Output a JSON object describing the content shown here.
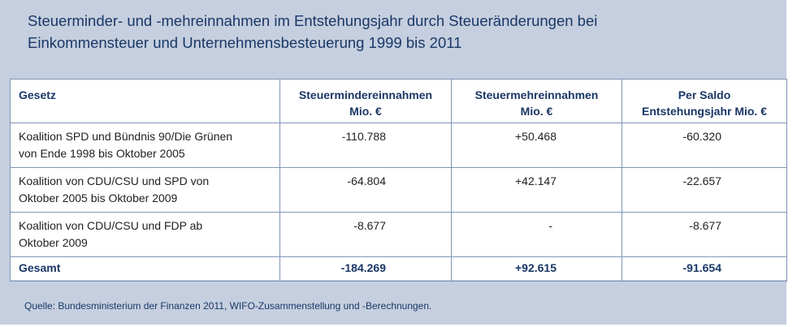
{
  "title_line1": "Steuerminder- und -mehreinnahmen im Entstehungsjahr durch Steueränderungen bei",
  "title_line2": "Einkommensteuer und Unternehmensbesteuerung 1999 bis 2011",
  "table": {
    "headers": [
      {
        "line1": "Gesetz",
        "line2": ""
      },
      {
        "line1": "Steuermindereinnahmen",
        "line2": "Mio. €"
      },
      {
        "line1": "Steuermehreinnahmen",
        "line2": "Mio. €"
      },
      {
        "line1": "Per Saldo",
        "line2": "Entstehungsjahr Mio. €"
      }
    ],
    "rows": [
      {
        "gesetz_line1": "Koalition SPD und Bündnis 90/Die Grünen",
        "gesetz_line2": "von Ende 1998 bis Oktober 2005",
        "minder": "-110.788",
        "mehr": "+50.468",
        "saldo": "-60.320"
      },
      {
        "gesetz_line1": "Koalition von CDU/CSU und SPD von",
        "gesetz_line2": "Oktober 2005 bis Oktober 2009",
        "minder": "-64.804",
        "mehr": "+42.147",
        "saldo": "-22.657"
      },
      {
        "gesetz_line1": "Koalition von CDU/CSU und FDP ab",
        "gesetz_line2": "Oktober 2009",
        "minder": "-8.677",
        "mehr": "-",
        "saldo": "-8.677"
      }
    ],
    "total": {
      "label": "Gesamt",
      "minder": "-184.269",
      "mehr": "+92.615",
      "saldo": "-91.654"
    }
  },
  "source": "Quelle: Bundesministerium der Finanzen 2011,  WIFO-Zusammenstellung und -Berechnungen.",
  "colors": {
    "panel": "#c5cfdf",
    "title": "#1a3766",
    "border": "#7f96b8"
  }
}
